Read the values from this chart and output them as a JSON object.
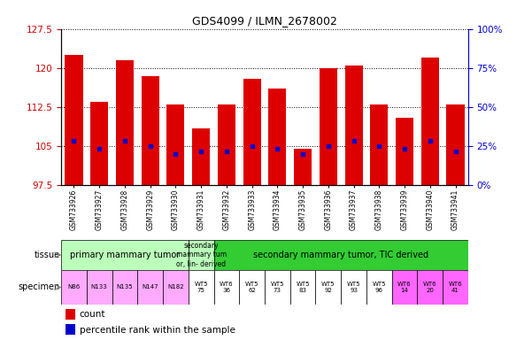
{
  "title": "GDS4099 / ILMN_2678002",
  "gsm_labels": [
    "GSM733926",
    "GSM733927",
    "GSM733928",
    "GSM733929",
    "GSM733930",
    "GSM733931",
    "GSM733932",
    "GSM733933",
    "GSM733934",
    "GSM733935",
    "GSM733936",
    "GSM733937",
    "GSM733938",
    "GSM733939",
    "GSM733940",
    "GSM733941"
  ],
  "bar_heights": [
    122.5,
    113.5,
    121.5,
    118.5,
    113.0,
    108.5,
    113.0,
    118.0,
    116.0,
    104.5,
    120.0,
    120.5,
    113.0,
    110.5,
    122.0,
    113.0
  ],
  "percentile_values": [
    106.0,
    104.5,
    106.0,
    105.0,
    103.5,
    104.0,
    104.0,
    105.0,
    104.5,
    103.5,
    105.0,
    106.0,
    105.0,
    104.5,
    106.0,
    104.0
  ],
  "ymin": 97.5,
  "ymax": 127.5,
  "yticks": [
    97.5,
    105.0,
    112.5,
    120.0,
    127.5
  ],
  "right_yticks_pct": [
    0,
    25,
    50,
    75,
    100
  ],
  "bar_color": "#dd0000",
  "percentile_color": "#0000cc",
  "bg_color": "#ffffff",
  "tick_color_left": "#cc0000",
  "tick_color_right": "#0000cc",
  "tissue_groups": [
    {
      "text": "primary mammary tumor",
      "start": 0,
      "end": 4,
      "color": "#bbffbb"
    },
    {
      "text": "secondary\nmammary tum\nor, lin- derived",
      "start": 5,
      "end": 5,
      "color": "#bbffbb"
    },
    {
      "text": "secondary mammary tumor, TIC derived",
      "start": 6,
      "end": 15,
      "color": "#33cc33"
    }
  ],
  "specimen_items": [
    {
      "text": "N86",
      "idx": 0,
      "color": "#ffaaff"
    },
    {
      "text": "N133",
      "idx": 1,
      "color": "#ffaaff"
    },
    {
      "text": "N135",
      "idx": 2,
      "color": "#ffaaff"
    },
    {
      "text": "N147",
      "idx": 3,
      "color": "#ffaaff"
    },
    {
      "text": "N182",
      "idx": 4,
      "color": "#ffaaff"
    },
    {
      "text": "WT5\n75",
      "idx": 5,
      "color": "#ffffff"
    },
    {
      "text": "WT6\n36",
      "idx": 6,
      "color": "#ffffff"
    },
    {
      "text": "WT5\n62",
      "idx": 7,
      "color": "#ffffff"
    },
    {
      "text": "WT5\n73",
      "idx": 8,
      "color": "#ffffff"
    },
    {
      "text": "WT5\n83",
      "idx": 9,
      "color": "#ffffff"
    },
    {
      "text": "WT5\n92",
      "idx": 10,
      "color": "#ffffff"
    },
    {
      "text": "WT5\n93",
      "idx": 11,
      "color": "#ffffff"
    },
    {
      "text": "WT5\n96",
      "idx": 12,
      "color": "#ffffff"
    },
    {
      "text": "WT6\n14",
      "idx": 13,
      "color": "#ff66ff"
    },
    {
      "text": "WT6\n20",
      "idx": 14,
      "color": "#ff66ff"
    },
    {
      "text": "WT6\n41",
      "idx": 15,
      "color": "#ff66ff"
    }
  ]
}
